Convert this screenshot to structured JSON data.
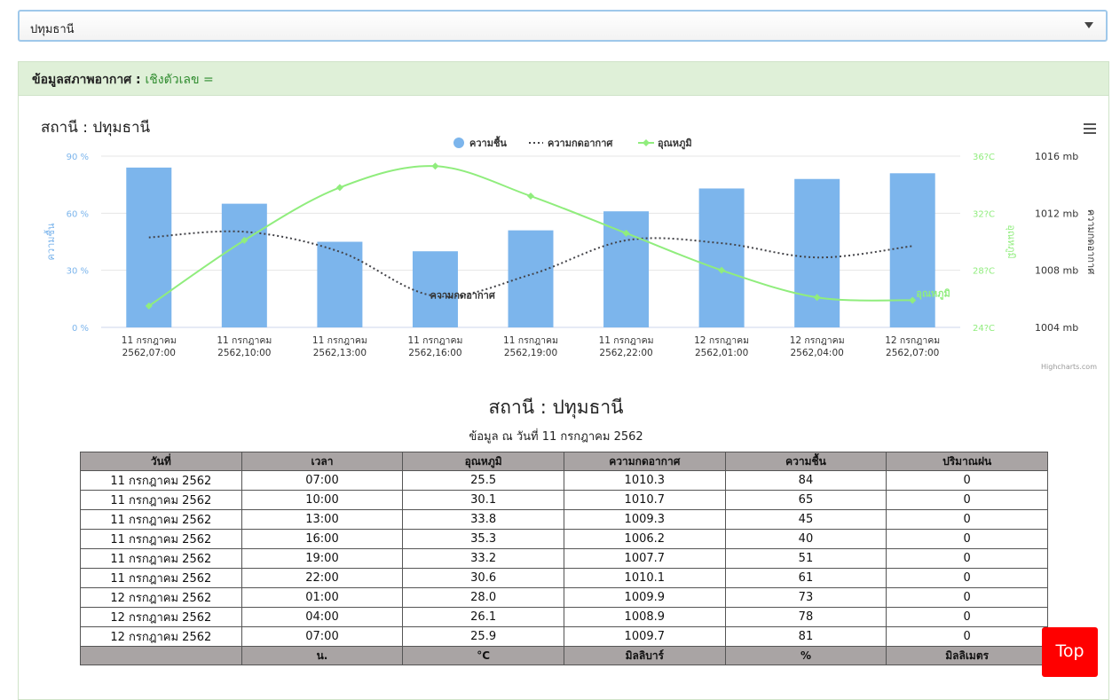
{
  "province_select": {
    "value": "ปทุมธานี"
  },
  "panel": {
    "heading": "ข้อมูลสภาพอากาศ :",
    "mode_link": "เชิงตัวเลข ="
  },
  "chart_title": "สถานี : ปทุมธานี",
  "credit": "Highcharts.com",
  "colors": {
    "humidity": "#7cb5ec",
    "pressure": "#434348",
    "temperature": "#90ed7d"
  },
  "chart_data": {
    "type": "bar",
    "categories": [
      [
        "11 กรกฎาคม",
        "2562,07:00"
      ],
      [
        "11 กรกฎาคม",
        "2562,10:00"
      ],
      [
        "11 กรกฎาคม",
        "2562,13:00"
      ],
      [
        "11 กรกฎาคม",
        "2562,16:00"
      ],
      [
        "11 กรกฎาคม",
        "2562,19:00"
      ],
      [
        "11 กรกฎาคม",
        "2562,22:00"
      ],
      [
        "12 กรกฎาคม",
        "2562,01:00"
      ],
      [
        "12 กรกฎาคม",
        "2562,04:00"
      ],
      [
        "12 กรกฎาคม",
        "2562,07:00"
      ]
    ],
    "series": [
      {
        "name": "ความชื้น",
        "type": "bar",
        "axis": "humidity",
        "values": [
          84,
          65,
          45,
          40,
          51,
          61,
          73,
          78,
          81
        ]
      },
      {
        "name": "ความกดอากาศ",
        "type": "line",
        "style": "dotted",
        "axis": "pressure",
        "values": [
          1010.3,
          1010.7,
          1009.3,
          1006.2,
          1007.7,
          1010.1,
          1009.9,
          1008.9,
          1009.7
        ]
      },
      {
        "name": "อุณหภูมิ",
        "type": "line",
        "axis": "temperature",
        "values": [
          25.5,
          30.1,
          33.8,
          35.3,
          33.2,
          30.6,
          28.0,
          26.1,
          25.9
        ]
      }
    ],
    "axes": {
      "humidity": {
        "label": "ความชื้น",
        "ticks": [
          "0 %",
          "30 %",
          "60 %",
          "90 %"
        ],
        "range": [
          0,
          90
        ]
      },
      "temperature": {
        "label": "อุณหภูมิ",
        "ticks": [
          "24?C",
          "28?C",
          "32?C",
          "36?C"
        ],
        "range": [
          24,
          36
        ]
      },
      "pressure": {
        "label": "ความกดอากาศ",
        "ticks": [
          "1004 mb",
          "1008 mb",
          "1012 mb",
          "1016 mb"
        ],
        "range": [
          1004,
          1016
        ]
      }
    },
    "series_end_labels": {
      "pressure": "ความกดอากาศ",
      "temperature": "อุณหภูมิ"
    },
    "legend_position": "top-center",
    "grid": true
  },
  "table": {
    "title": "สถานี : ปทุมธานี",
    "subtitle": "ข้อมูล ณ วันที่ 11 กรกฎาคม 2562",
    "headers": [
      "วันที่",
      "เวลา",
      "อุณหภูมิ",
      "ความกดอากาศ",
      "ความชื้น",
      "ปริมาณฝน"
    ],
    "rows": [
      [
        "11 กรกฎาคม 2562",
        "07:00",
        "25.5",
        "1010.3",
        "84",
        "0"
      ],
      [
        "11 กรกฎาคม 2562",
        "10:00",
        "30.1",
        "1010.7",
        "65",
        "0"
      ],
      [
        "11 กรกฎาคม 2562",
        "13:00",
        "33.8",
        "1009.3",
        "45",
        "0"
      ],
      [
        "11 กรกฎาคม 2562",
        "16:00",
        "35.3",
        "1006.2",
        "40",
        "0"
      ],
      [
        "11 กรกฎาคม 2562",
        "19:00",
        "33.2",
        "1007.7",
        "51",
        "0"
      ],
      [
        "11 กรกฎาคม 2562",
        "22:00",
        "30.6",
        "1010.1",
        "61",
        "0"
      ],
      [
        "12 กรกฎาคม 2562",
        "01:00",
        "28.0",
        "1009.9",
        "73",
        "0"
      ],
      [
        "12 กรกฎาคม 2562",
        "04:00",
        "26.1",
        "1008.9",
        "78",
        "0"
      ],
      [
        "12 กรกฎาคม 2562",
        "07:00",
        "25.9",
        "1009.7",
        "81",
        "0"
      ]
    ],
    "units": [
      "",
      "น.",
      "°C",
      "มิลลิบาร์",
      "%",
      "มิลลิเมตร"
    ]
  },
  "top_button": "Top"
}
